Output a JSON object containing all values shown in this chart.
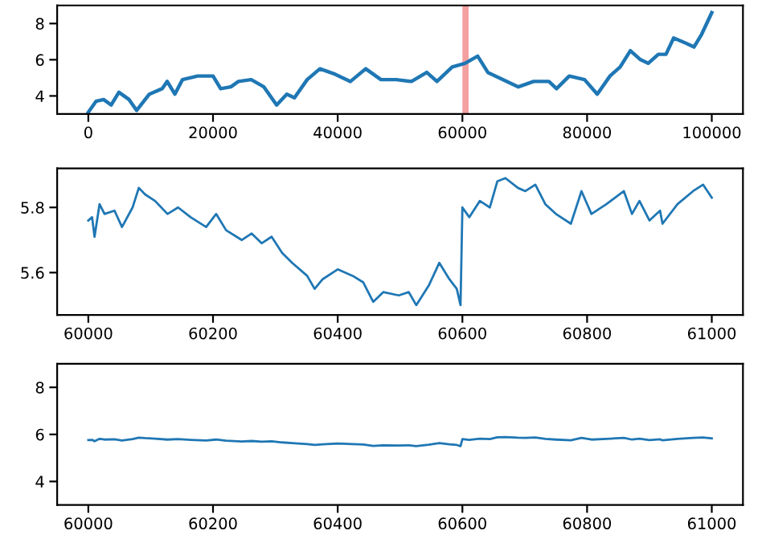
{
  "chart_data": [
    {
      "type": "line",
      "xlim": [
        -5000,
        105000
      ],
      "ylim": [
        3,
        9
      ],
      "xticks": [
        0,
        20000,
        40000,
        60000,
        80000,
        100000
      ],
      "yticks": [
        4,
        6,
        8
      ],
      "grid": false,
      "series": [
        {
          "color": "#1f77b4",
          "x": [
            0,
            1224,
            2449,
            3673,
            4898,
            6531,
            7755,
            9796,
            11837,
            12653,
            13878,
            15102,
            17551,
            20000,
            21224,
            22857,
            24082,
            26122,
            28163,
            30204,
            31837,
            33061,
            35102,
            37143,
            39592,
            42041,
            44490,
            46939,
            49388,
            51837,
            54286,
            55918,
            58367,
            60408,
            62449,
            64082,
            66531,
            68980,
            71429,
            73878,
            75102,
            77143,
            79592,
            81633,
            83673,
            85306,
            86939,
            88571,
            89796,
            91429,
            92653,
            93878,
            95918,
            97143,
            98367,
            100000
          ],
          "values": [
            3.1,
            3.7,
            3.8,
            3.5,
            4.2,
            3.8,
            3.2,
            4.1,
            4.4,
            4.8,
            4.1,
            4.9,
            5.1,
            5.1,
            4.4,
            4.5,
            4.8,
            4.9,
            4.5,
            3.5,
            4.1,
            3.9,
            4.9,
            5.5,
            5.2,
            4.8,
            5.5,
            4.9,
            4.9,
            4.8,
            5.3,
            4.8,
            5.6,
            5.8,
            6.2,
            5.3,
            4.9,
            4.5,
            4.8,
            4.8,
            4.4,
            5.1,
            4.9,
            4.1,
            5.1,
            5.6,
            6.5,
            6.0,
            5.8,
            6.3,
            6.3,
            7.2,
            6.9,
            6.7,
            7.4,
            8.6
          ]
        }
      ],
      "bands": [
        {
          "axis": "x",
          "from": 60000,
          "to": 61000,
          "color": "#f4a0a0"
        }
      ]
    },
    {
      "type": "line",
      "xlim": [
        59950,
        61050
      ],
      "ylim": [
        5.47,
        5.92
      ],
      "xticks": [
        60000,
        60200,
        60400,
        60600,
        60800,
        61000
      ],
      "yticks": [
        5.6,
        5.8
      ],
      "grid": false,
      "series": [
        {
          "color": "#1f77b4",
          "x": [
            60000,
            60006,
            60010,
            60018,
            60026,
            60042,
            60054,
            60071,
            60081,
            60091,
            60107,
            60127,
            60144,
            60164,
            60189,
            60205,
            60221,
            60246,
            60262,
            60278,
            60294,
            60311,
            60327,
            60351,
            60363,
            60376,
            60400,
            60424,
            60441,
            60457,
            60473,
            60498,
            60514,
            60526,
            60546,
            60563,
            60579,
            60591,
            60597,
            60600,
            60611,
            60628,
            60644,
            60656,
            60669,
            60689,
            60701,
            60717,
            60733,
            60750,
            60774,
            60791,
            60807,
            60831,
            60859,
            60872,
            60884,
            60900,
            60917,
            60921,
            60945,
            60970,
            60986,
            61000
          ],
          "values": [
            5.76,
            5.77,
            5.71,
            5.81,
            5.78,
            5.79,
            5.74,
            5.8,
            5.86,
            5.84,
            5.82,
            5.78,
            5.8,
            5.77,
            5.74,
            5.78,
            5.73,
            5.7,
            5.72,
            5.69,
            5.71,
            5.66,
            5.63,
            5.59,
            5.55,
            5.58,
            5.61,
            5.59,
            5.57,
            5.51,
            5.54,
            5.53,
            5.54,
            5.5,
            5.56,
            5.63,
            5.58,
            5.55,
            5.5,
            5.8,
            5.77,
            5.82,
            5.8,
            5.88,
            5.89,
            5.86,
            5.85,
            5.87,
            5.81,
            5.78,
            5.75,
            5.85,
            5.78,
            5.81,
            5.85,
            5.78,
            5.82,
            5.76,
            5.79,
            5.75,
            5.81,
            5.85,
            5.87,
            5.83
          ]
        }
      ]
    },
    {
      "type": "line",
      "xlim": [
        59950,
        61050
      ],
      "ylim": [
        3,
        9
      ],
      "xticks": [
        60000,
        60200,
        60400,
        60600,
        60800,
        61000
      ],
      "yticks": [
        4,
        6,
        8
      ],
      "grid": false,
      "series": [
        {
          "color": "#1f77b4",
          "x": [
            60000,
            60006,
            60010,
            60018,
            60026,
            60042,
            60054,
            60071,
            60081,
            60091,
            60107,
            60127,
            60144,
            60164,
            60189,
            60205,
            60221,
            60246,
            60262,
            60278,
            60294,
            60311,
            60327,
            60351,
            60363,
            60376,
            60400,
            60424,
            60441,
            60457,
            60473,
            60498,
            60514,
            60526,
            60546,
            60563,
            60579,
            60591,
            60597,
            60600,
            60611,
            60628,
            60644,
            60656,
            60669,
            60689,
            60701,
            60717,
            60733,
            60750,
            60774,
            60791,
            60807,
            60831,
            60859,
            60872,
            60884,
            60900,
            60917,
            60921,
            60945,
            60970,
            60986,
            61000
          ],
          "values": [
            5.76,
            5.77,
            5.71,
            5.81,
            5.78,
            5.79,
            5.74,
            5.8,
            5.86,
            5.84,
            5.82,
            5.78,
            5.8,
            5.77,
            5.74,
            5.78,
            5.73,
            5.7,
            5.72,
            5.69,
            5.71,
            5.66,
            5.63,
            5.59,
            5.55,
            5.58,
            5.61,
            5.59,
            5.57,
            5.51,
            5.54,
            5.53,
            5.54,
            5.5,
            5.56,
            5.63,
            5.58,
            5.55,
            5.5,
            5.8,
            5.77,
            5.82,
            5.8,
            5.88,
            5.89,
            5.86,
            5.85,
            5.87,
            5.81,
            5.78,
            5.75,
            5.85,
            5.78,
            5.81,
            5.85,
            5.78,
            5.82,
            5.76,
            5.79,
            5.75,
            5.81,
            5.85,
            5.87,
            5.83
          ]
        }
      ]
    }
  ]
}
